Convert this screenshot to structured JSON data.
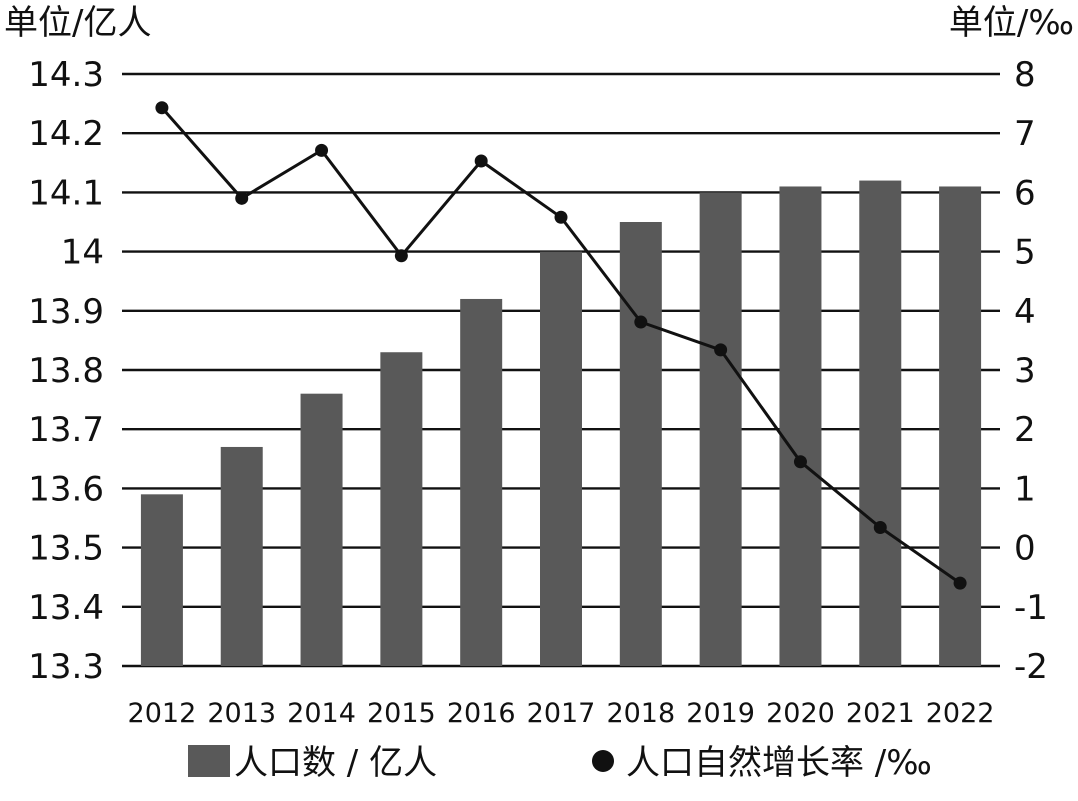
{
  "chart_data": {
    "type": "bar",
    "categories": [
      "2012",
      "2013",
      "2014",
      "2015",
      "2016",
      "2017",
      "2018",
      "2019",
      "2020",
      "2021",
      "2022"
    ],
    "left_axis": {
      "unit_label": "单位/亿人",
      "ylim": [
        13.3,
        14.3
      ],
      "ticks": [
        "14.3",
        "14.2",
        "14.1",
        "14",
        "13.9",
        "13.8",
        "13.7",
        "13.6",
        "13.5",
        "13.4",
        "13.3"
      ]
    },
    "right_axis": {
      "unit_label": "单位/‰",
      "ylim": [
        -2,
        8
      ],
      "ticks": [
        "8",
        "7",
        "6",
        "5",
        "4",
        "3",
        "2",
        "1",
        "0",
        "-1",
        "-2"
      ]
    },
    "series": [
      {
        "name": "人口数 / 亿人",
        "type": "bar",
        "axis": "left",
        "color": "#595959",
        "values": [
          13.59,
          13.67,
          13.76,
          13.83,
          13.92,
          14.0,
          14.05,
          14.1,
          14.11,
          14.12,
          14.11
        ]
      },
      {
        "name": "人口自然增长率 /‰",
        "type": "line",
        "axis": "right",
        "color": "#111111",
        "values": [
          7.43,
          5.9,
          6.71,
          4.93,
          6.53,
          5.58,
          3.81,
          3.34,
          1.45,
          0.34,
          -0.6
        ]
      }
    ],
    "grid": true,
    "legend_position": "bottom"
  }
}
